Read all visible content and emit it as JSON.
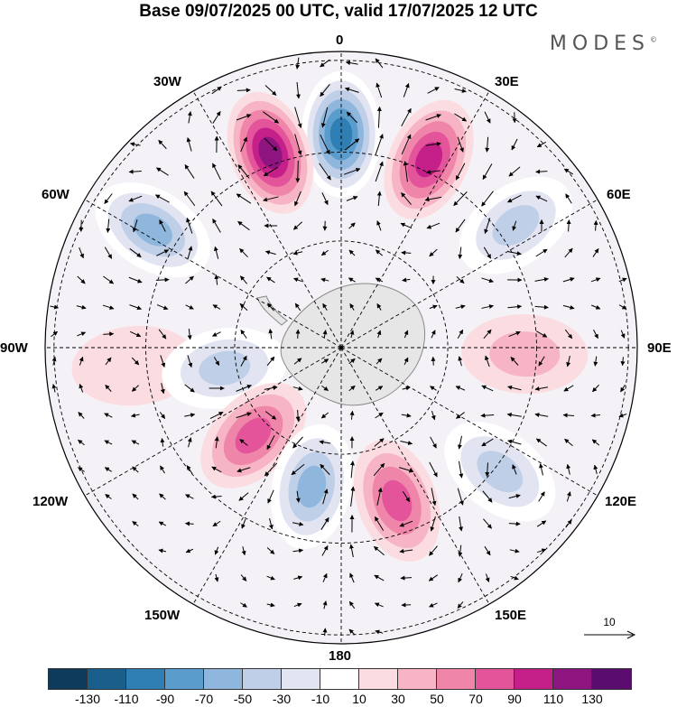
{
  "title": "Base 09/07/2025 00 UTC, valid 17/07/2025 12 UTC",
  "brand": "MODES",
  "brand_mark": "©",
  "longitude_labels": {
    "top": "0",
    "tr": "30E",
    "tl": "30W",
    "r60": "60E",
    "l60": "60W",
    "r90": "90E",
    "l90": "90W",
    "r120": "120E",
    "l120": "120W",
    "r150": "150E",
    "l150": "150W",
    "bottom": "180"
  },
  "reference_vector": "10",
  "colorbar": {
    "colors": [
      "#0e3a5c",
      "#1a5e8c",
      "#2f7fb4",
      "#5a9ccb",
      "#8fb6dc",
      "#bfcfe8",
      "#e2e4f1",
      "#ffffff",
      "#fbdde1",
      "#f6b4c4",
      "#ef86aa",
      "#e3549a",
      "#c51f8a",
      "#8e1480",
      "#5b0c6f"
    ],
    "ticks": [
      "-130",
      "-110",
      "-90",
      "-70",
      "-50",
      "-30",
      "-10",
      "10",
      "30",
      "50",
      "70",
      "90",
      "110",
      "130"
    ]
  },
  "anomaly_cells": [
    {
      "lon": 0,
      "r": 0.72,
      "value": -125
    },
    {
      "lon": -20,
      "r": 0.7,
      "value": 120
    },
    {
      "lon": 25,
      "r": 0.7,
      "value": 105
    },
    {
      "lon": -58,
      "r": 0.75,
      "value": -70
    },
    {
      "lon": 55,
      "r": 0.72,
      "value": -60
    },
    {
      "lon": 92,
      "r": 0.62,
      "value": 45
    },
    {
      "lon": -95,
      "r": 0.7,
      "value": 25
    },
    {
      "lon": -100,
      "r": 0.4,
      "value": -50
    },
    {
      "lon": -135,
      "r": 0.42,
      "value": 70
    },
    {
      "lon": 128,
      "r": 0.68,
      "value": -55
    },
    {
      "lon": 160,
      "r": 0.55,
      "value": 85
    },
    {
      "lon": -168,
      "r": 0.48,
      "value": -70
    }
  ]
}
